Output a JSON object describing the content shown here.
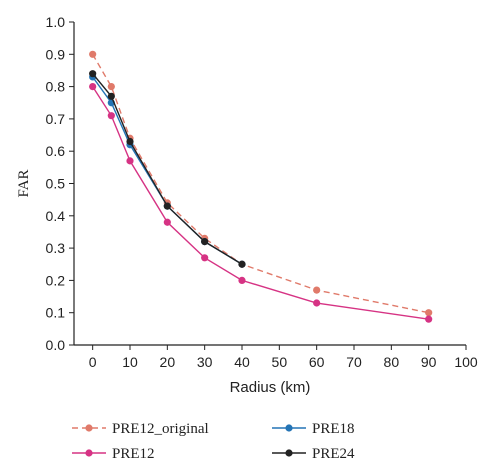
{
  "chart_data": {
    "type": "line",
    "xlabel": "Radius (km)",
    "ylabel": "FAR",
    "xlim": [
      -5,
      100
    ],
    "ylim": [
      0.0,
      1.0
    ],
    "x_ticks": [
      "0",
      "10",
      "20",
      "30",
      "40",
      "50",
      "60",
      "70",
      "80",
      "90",
      "100"
    ],
    "y_ticks": [
      "0.0",
      "0.1",
      "0.2",
      "0.3",
      "0.4",
      "0.5",
      "0.6",
      "0.7",
      "0.8",
      "0.9",
      "1.0"
    ],
    "grid": false,
    "legend_position": "bottom",
    "series": [
      {
        "name": "PRE12_original",
        "color": "#e07a6a",
        "line_style": "dashed",
        "x": [
          0,
          5,
          10,
          20,
          30,
          40,
          60,
          90
        ],
        "y": [
          0.9,
          0.8,
          0.64,
          0.44,
          0.33,
          0.25,
          0.17,
          0.1
        ]
      },
      {
        "name": "PRE12",
        "color": "#d63384",
        "line_style": "solid",
        "x": [
          0,
          5,
          10,
          20,
          30,
          40,
          60,
          90
        ],
        "y": [
          0.8,
          0.71,
          0.57,
          0.38,
          0.27,
          0.2,
          0.13,
          0.08
        ]
      },
      {
        "name": "PRE18",
        "color": "#2474b5",
        "line_style": "solid",
        "x": [
          0,
          5,
          10,
          20,
          30,
          40
        ],
        "y": [
          0.83,
          0.75,
          0.62,
          0.43,
          0.32,
          0.25
        ]
      },
      {
        "name": "PRE24",
        "color": "#222222",
        "line_style": "solid",
        "x": [
          0,
          5,
          10,
          20,
          30,
          40
        ],
        "y": [
          0.84,
          0.77,
          0.63,
          0.43,
          0.32,
          0.25
        ]
      }
    ]
  }
}
